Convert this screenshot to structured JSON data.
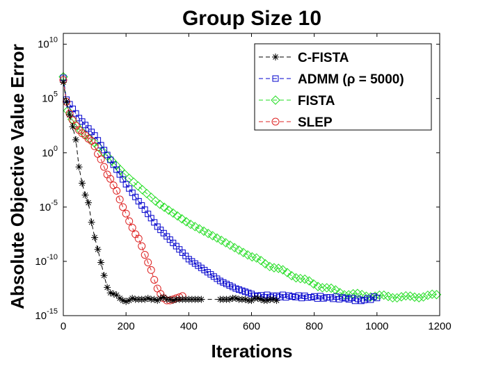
{
  "chart_data": {
    "type": "line",
    "title": "Group Size 10",
    "xlabel": "Iterations",
    "ylabel": "Absolute Objective Value Error",
    "yscale": "log",
    "xlim": [
      0,
      1200
    ],
    "ylim_exp": [
      -15,
      11
    ],
    "xticks": [
      0,
      200,
      400,
      600,
      800,
      1000,
      1200
    ],
    "yticks_exp": [
      10,
      5,
      0,
      -5,
      -10,
      -15
    ],
    "ytick_base": "10",
    "legend_position": "top-right",
    "series": [
      {
        "name": "C-FISTA",
        "color": "#000000",
        "marker": "asterisk",
        "x": [
          0,
          10,
          20,
          30,
          40,
          50,
          60,
          70,
          80,
          90,
          100,
          110,
          120,
          130,
          140,
          150,
          160,
          170,
          180,
          190,
          200,
          210,
          220,
          230,
          240,
          250,
          260,
          270,
          280,
          290,
          300,
          310,
          320,
          330,
          340,
          350,
          360,
          370,
          380,
          390,
          400,
          410,
          420,
          430,
          440,
          500,
          510,
          520,
          530,
          540,
          550,
          560,
          570,
          580,
          590,
          600,
          610,
          620,
          630,
          640,
          650,
          660,
          670,
          680
        ],
        "y_exp": [
          6.5,
          4.7,
          3.5,
          2.4,
          1.2,
          -1.3,
          -2.8,
          -3.9,
          -4.6,
          -6.4,
          -7.8,
          -8.9,
          -10.1,
          -11.3,
          -12.4,
          -12.9,
          -13.0,
          -13.1,
          -13.4,
          -13.6,
          -13.7,
          -13.6,
          -13.4,
          -13.5,
          -13.5,
          -13.5,
          -13.5,
          -13.4,
          -13.5,
          -13.5,
          -13.6,
          -13.4,
          -13.3,
          -13.5,
          -13.5,
          -13.6,
          -13.5,
          -13.5,
          -13.5,
          -13.5,
          -13.5,
          -13.5,
          -13.5,
          -13.5,
          -13.5,
          -13.5,
          -13.5,
          -13.5,
          -13.5,
          -13.4,
          -13.4,
          -13.5,
          -13.5,
          -13.5,
          -13.6,
          -13.6,
          -13.4,
          -13.4,
          -13.5,
          -13.6,
          -13.6,
          -13.5,
          -13.5,
          -13.6
        ]
      },
      {
        "name": "ADMM (ρ = 5000)",
        "color": "#0000cc",
        "marker": "square",
        "anchors_x": [
          0,
          10,
          50,
          100,
          200,
          300,
          400,
          500,
          550,
          600,
          620,
          700,
          800,
          900,
          950,
          1000
        ],
        "anchors_y_exp": [
          6.9,
          4.9,
          3.2,
          1.6,
          -2.9,
          -6.8,
          -9.8,
          -11.8,
          -12.5,
          -13.0,
          -13.2,
          -13.2,
          -13.3,
          -13.4,
          -13.6,
          -13.3
        ],
        "step": 10
      },
      {
        "name": "FISTA",
        "color": "#22dd22",
        "marker": "diamond",
        "anchors_x": [
          0,
          10,
          20,
          50,
          100,
          200,
          300,
          400,
          500,
          600,
          700,
          800,
          900,
          1000,
          1100,
          1200
        ],
        "anchors_y_exp": [
          7.0,
          4.2,
          3.4,
          2.2,
          0.9,
          -2.1,
          -4.6,
          -6.5,
          -8.0,
          -9.6,
          -10.9,
          -12.1,
          -13.0,
          -13.2,
          -13.3,
          -13.1
        ],
        "step": 14
      },
      {
        "name": "SLEP",
        "color": "#dd2222",
        "marker": "circle",
        "x": [
          0,
          10,
          20,
          30,
          40,
          50,
          60,
          70,
          80,
          90,
          100,
          110,
          120,
          130,
          140,
          150,
          160,
          170,
          180,
          190,
          200,
          210,
          220,
          230,
          240,
          250,
          260,
          270,
          280,
          290,
          300,
          310,
          320,
          330,
          340,
          350,
          360,
          370,
          380
        ],
        "y_exp": [
          6.7,
          4.7,
          3.6,
          3.0,
          2.5,
          2.1,
          1.8,
          1.6,
          1.3,
          1.1,
          0.6,
          -0.1,
          -0.6,
          -1.3,
          -2.0,
          -2.4,
          -3.0,
          -3.5,
          -4.3,
          -5.0,
          -5.6,
          -6.3,
          -6.9,
          -7.5,
          -7.9,
          -8.6,
          -9.4,
          -10.1,
          -10.8,
          -11.7,
          -12.5,
          -13.0,
          -13.4,
          -13.6,
          -13.6,
          -13.5,
          -13.4,
          -13.3,
          -13.2
        ]
      }
    ]
  }
}
